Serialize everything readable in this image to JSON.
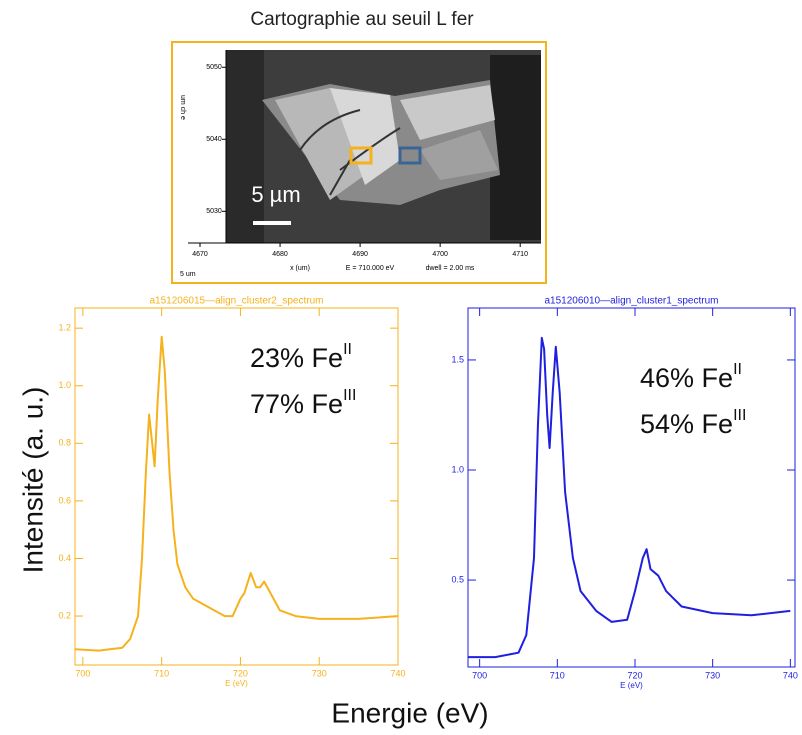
{
  "title": "Cartographie au seuil L fer",
  "map": {
    "ylabel": "um ch e",
    "xlabel": "x (um)",
    "energy": "E =  710.000 eV",
    "dwell": "dwell =    2.00 ms",
    "corner": "5 um",
    "scalebar": "5 µm",
    "xlim": [
      4668.5,
      4712.6
    ],
    "ylim": [
      5025.6,
      5052.4
    ],
    "xticks": [
      4670,
      4680,
      4690,
      4700,
      4710
    ],
    "yticks": [
      5030,
      5040,
      5050
    ]
  },
  "ylabel": "Intensité (a. u.)",
  "xlabel": "Energie (eV)",
  "chart_data": [
    {
      "type": "line",
      "title": "a151206015—align_cluster2_spectrum",
      "xlabel": "E (eV)",
      "color": "#f5b21c",
      "x": [
        699,
        702,
        705,
        706,
        707,
        707.5,
        708,
        708.4,
        708.8,
        709.1,
        709.5,
        710,
        710.4,
        711,
        711.5,
        712,
        713,
        714,
        716,
        718,
        719,
        720,
        720.5,
        721.3,
        722,
        722.5,
        723,
        724,
        725,
        727,
        730,
        735,
        740
      ],
      "values": [
        0.085,
        0.08,
        0.09,
        0.12,
        0.2,
        0.4,
        0.7,
        0.9,
        0.8,
        0.72,
        0.95,
        1.17,
        1.05,
        0.7,
        0.5,
        0.38,
        0.3,
        0.26,
        0.23,
        0.2,
        0.2,
        0.26,
        0.28,
        0.35,
        0.3,
        0.3,
        0.32,
        0.27,
        0.22,
        0.2,
        0.19,
        0.19,
        0.2
      ],
      "xlim": [
        699,
        740
      ],
      "ylim": [
        0.03,
        1.27
      ],
      "xticks": [
        700,
        710,
        720,
        730,
        740
      ],
      "yticks": [
        {
          "value": 0.2,
          "label": "0.2"
        },
        {
          "value": 0.4,
          "label": "0.4"
        },
        {
          "value": 0.6,
          "label": "0.6"
        },
        {
          "value": 0.8,
          "label": "0.8"
        },
        {
          "value": 1,
          "label": "1.0"
        },
        {
          "value": 1.2,
          "label": "1.2"
        }
      ],
      "annotations": [
        {
          "text": "23% Fe",
          "sup": "II"
        },
        {
          "text": "77% Fe",
          "sup": "III"
        }
      ]
    },
    {
      "type": "line",
      "title": "a151206010—align_cluster1_spectrum",
      "xlabel": "E (eV)",
      "color": "#1f1fe0",
      "x": [
        698.5,
        702,
        705,
        706,
        707,
        707.5,
        708,
        708.3,
        708.7,
        709,
        709.4,
        709.8,
        710.3,
        711,
        712,
        713,
        715,
        717,
        719,
        720,
        721,
        721.5,
        722,
        723,
        724,
        726,
        730,
        735,
        740
      ],
      "values": [
        0.15,
        0.15,
        0.17,
        0.25,
        0.6,
        1.2,
        1.6,
        1.55,
        1.25,
        1.1,
        1.35,
        1.56,
        1.35,
        0.9,
        0.6,
        0.45,
        0.36,
        0.31,
        0.32,
        0.45,
        0.6,
        0.64,
        0.55,
        0.52,
        0.45,
        0.38,
        0.35,
        0.34,
        0.36
      ],
      "xlim": [
        698.5,
        740.6
      ],
      "ylim": [
        0.105,
        1.736
      ],
      "xticks": [
        700,
        710,
        720,
        730,
        740
      ],
      "yticks": [
        {
          "value": 0.5,
          "label": "0.5"
        },
        {
          "value": 1,
          "label": "1.0"
        },
        {
          "value": 1.5,
          "label": "1.5"
        }
      ],
      "annotations": [
        {
          "text": "46% Fe",
          "sup": "II"
        },
        {
          "text": "54% Fe",
          "sup": "III"
        }
      ]
    }
  ]
}
